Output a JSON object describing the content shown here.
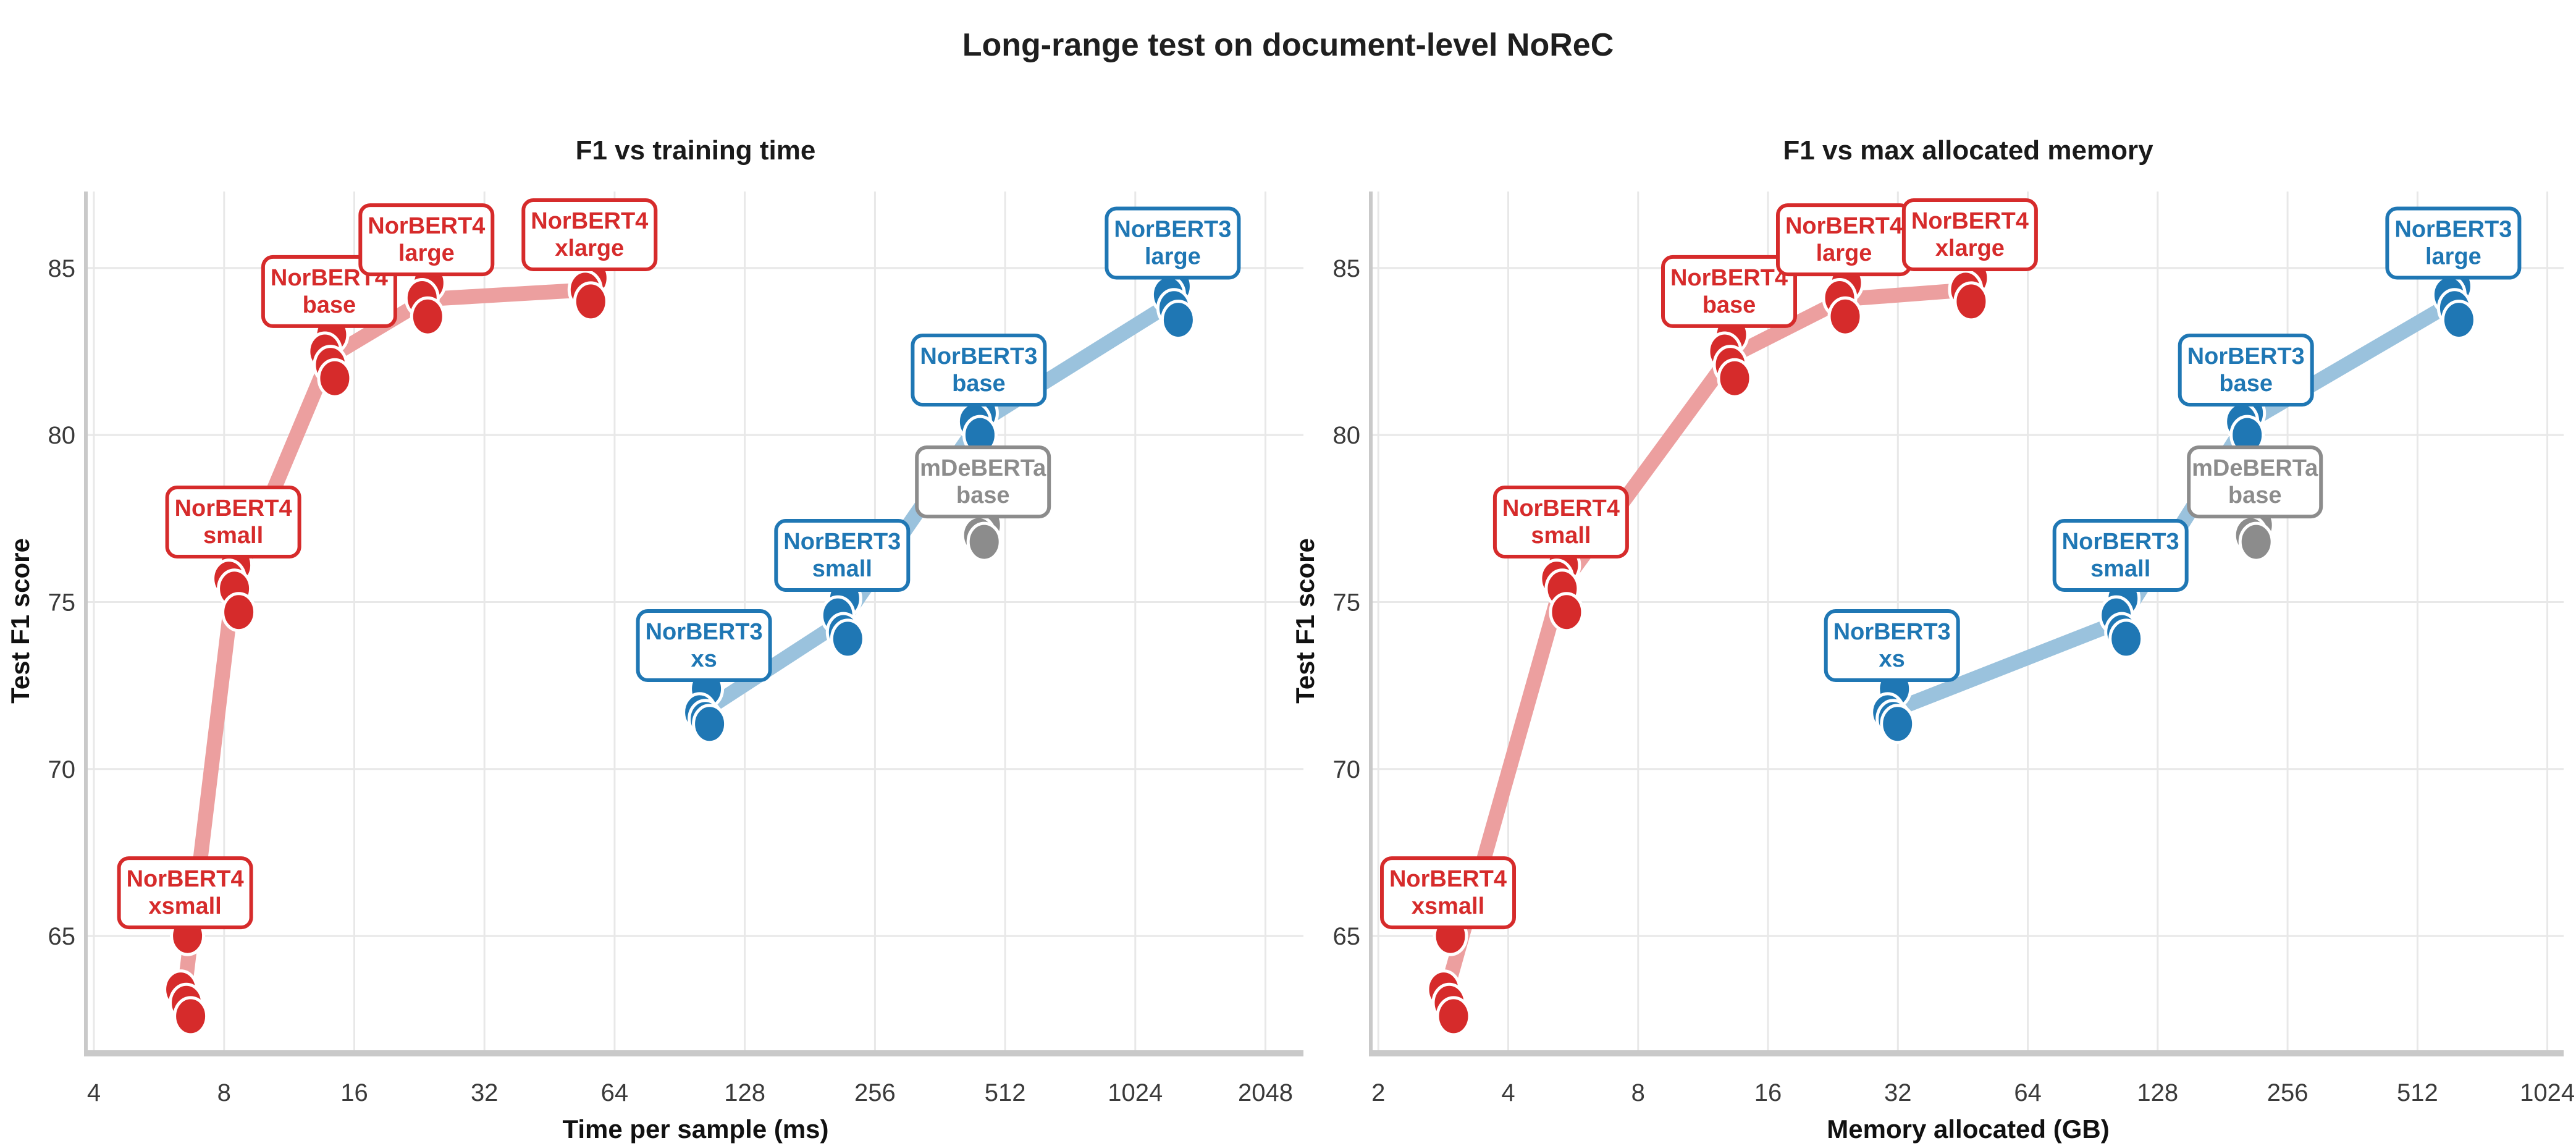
{
  "figure": {
    "title": "Long-range test on document-level NoReC",
    "background": "#ffffff",
    "grid_color": "#e8e8e8",
    "spine_color": "#c9c9c9",
    "tick_text_color": "#3a3a3a"
  },
  "chart_data": [
    {
      "type": "scatter",
      "title": "F1 vs training time",
      "xlabel": "Time per sample (ms)",
      "ylabel": "Test F1 score",
      "x_scale": "log2",
      "x_ticks": [
        4,
        8,
        16,
        32,
        64,
        128,
        256,
        512,
        1024,
        2048
      ],
      "x_range": [
        3.87,
        2507
      ],
      "y_ticks": [
        65,
        70,
        75,
        80,
        85
      ],
      "y_range": [
        61.58,
        87.29
      ],
      "grid": true,
      "legend": "none",
      "series": [
        {
          "name": "NorBERT4",
          "color": "#d62b2b",
          "line_color": "#ec9f9f",
          "line": true,
          "points": [
            {
              "label": [
                "NorBERT4",
                "xsmall"
              ],
              "x": 6.5,
              "f1": [
                65.0,
                63.4,
                63.0,
                62.6
              ]
            },
            {
              "label": [
                "NorBERT4",
                "small"
              ],
              "x": 8.4,
              "f1": [
                76.1,
                75.7,
                75.4,
                74.7
              ]
            },
            {
              "label": [
                "NorBERT4",
                "base"
              ],
              "x": 14,
              "f1": [
                83.0,
                82.5,
                82.1,
                81.7
              ]
            },
            {
              "label": [
                "NorBERT4",
                "large"
              ],
              "x": 23.5,
              "f1": [
                84.55,
                84.1,
                83.55
              ]
            },
            {
              "label": [
                "NorBERT4",
                "xlarge"
              ],
              "x": 56,
              "f1": [
                84.7,
                84.35,
                84.0
              ]
            }
          ]
        },
        {
          "name": "NorBERT3",
          "color": "#1f77b4",
          "line_color": "#9ac2dd",
          "line": true,
          "points": [
            {
              "label": [
                "NorBERT3",
                "xs"
              ],
              "x": 103,
              "f1": [
                72.4,
                71.7,
                71.5,
                71.35
              ]
            },
            {
              "label": [
                "NorBERT3",
                "small"
              ],
              "x": 215,
              "f1": [
                75.1,
                74.6,
                74.1,
                73.9
              ]
            },
            {
              "label": [
                "NorBERT3",
                "base"
              ],
              "x": 445,
              "f1": [
                80.65,
                80.4,
                80.0
              ]
            },
            {
              "label": [
                "NorBERT3",
                "large"
              ],
              "x": 1250,
              "f1": [
                84.45,
                84.2,
                83.8,
                83.45
              ]
            }
          ]
        },
        {
          "name": "mDeBERTa",
          "color": "#8c8c8c",
          "line_color": "#c5c5c5",
          "line": false,
          "points": [
            {
              "label": [
                "mDeBERTa",
                "base"
              ],
              "x": 455,
              "f1": [
                77.3,
                77.0,
                76.8
              ]
            }
          ]
        }
      ]
    },
    {
      "type": "scatter",
      "title": "F1 vs max allocated memory",
      "xlabel": "Memory allocated (GB)",
      "ylabel": "Test F1 score",
      "x_scale": "log2",
      "x_ticks": [
        2,
        4,
        8,
        16,
        32,
        64,
        128,
        256,
        512,
        1024
      ],
      "x_range": [
        1.94,
        1117
      ],
      "y_ticks": [
        65,
        70,
        75,
        80,
        85
      ],
      "y_range": [
        61.58,
        87.29
      ],
      "grid": true,
      "legend": "none",
      "series": [
        {
          "name": "NorBERT4",
          "color": "#d62b2b",
          "line_color": "#ec9f9f",
          "line": true,
          "points": [
            {
              "label": [
                "NorBERT4",
                "xsmall"
              ],
              "x": 2.9,
              "f1": [
                65.0,
                63.4,
                63.0,
                62.6
              ]
            },
            {
              "label": [
                "NorBERT4",
                "small"
              ],
              "x": 5.3,
              "f1": [
                76.1,
                75.7,
                75.4,
                74.7
              ]
            },
            {
              "label": [
                "NorBERT4",
                "base"
              ],
              "x": 13,
              "f1": [
                83.0,
                82.5,
                82.1,
                81.7
              ]
            },
            {
              "label": [
                "NorBERT4",
                "large"
              ],
              "x": 24,
              "f1": [
                84.55,
                84.1,
                83.55
              ]
            },
            {
              "label": [
                "NorBERT4",
                "xlarge"
              ],
              "x": 47,
              "f1": [
                84.7,
                84.35,
                84.0
              ]
            }
          ]
        },
        {
          "name": "NorBERT3",
          "color": "#1f77b4",
          "line_color": "#9ac2dd",
          "line": true,
          "points": [
            {
              "label": [
                "NorBERT3",
                "xs"
              ],
              "x": 31,
              "f1": [
                72.4,
                71.7,
                71.5,
                71.35
              ]
            },
            {
              "label": [
                "NorBERT3",
                "small"
              ],
              "x": 105,
              "f1": [
                75.1,
                74.6,
                74.1,
                73.9
              ]
            },
            {
              "label": [
                "NorBERT3",
                "base"
              ],
              "x": 205,
              "f1": [
                80.65,
                80.4,
                80.0
              ]
            },
            {
              "label": [
                "NorBERT3",
                "large"
              ],
              "x": 620,
              "f1": [
                84.45,
                84.2,
                83.8,
                83.45
              ]
            }
          ]
        },
        {
          "name": "mDeBERTa",
          "color": "#8c8c8c",
          "line_color": "#c5c5c5",
          "line": false,
          "points": [
            {
              "label": [
                "mDeBERTa",
                "base"
              ],
              "x": 215,
              "f1": [
                77.3,
                77.0,
                76.8
              ]
            }
          ]
        }
      ]
    }
  ]
}
